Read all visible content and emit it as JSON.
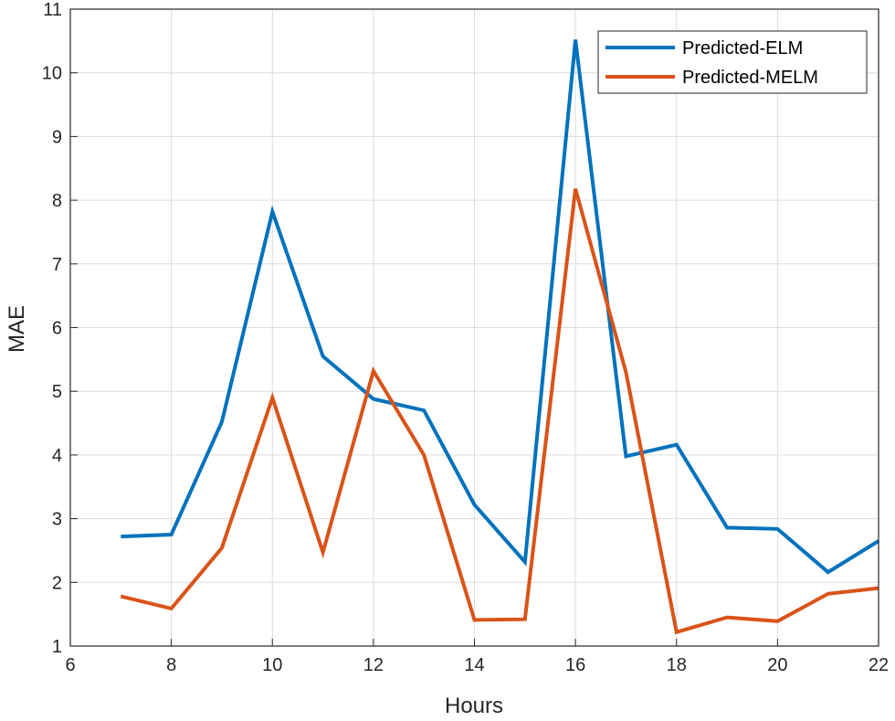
{
  "chart_data": {
    "type": "line",
    "title": "",
    "xlabel": "Hours",
    "ylabel": "MAE",
    "xlim": [
      6,
      22
    ],
    "ylim": [
      1,
      11
    ],
    "xticks": [
      6,
      8,
      10,
      12,
      14,
      16,
      18,
      20,
      22
    ],
    "yticks": [
      1,
      2,
      3,
      4,
      5,
      6,
      7,
      8,
      9,
      10,
      11
    ],
    "grid": true,
    "legend_position": "top-right",
    "x": [
      7,
      8,
      9,
      10,
      11,
      12,
      13,
      14,
      15,
      16,
      17,
      18,
      19,
      20,
      21,
      22
    ],
    "series": [
      {
        "name": "Predicted-ELM",
        "color": "#0072bd",
        "values": [
          2.72,
          2.75,
          4.52,
          7.82,
          5.55,
          4.88,
          4.7,
          3.22,
          2.32,
          10.52,
          3.98,
          4.16,
          2.86,
          2.84,
          2.16,
          2.65
        ]
      },
      {
        "name": "Predicted-MELM",
        "color": "#d95319",
        "values": [
          1.78,
          1.59,
          2.54,
          4.9,
          2.47,
          5.32,
          4.0,
          1.41,
          1.42,
          8.18,
          5.3,
          1.22,
          1.45,
          1.39,
          1.82,
          1.91
        ]
      }
    ]
  }
}
